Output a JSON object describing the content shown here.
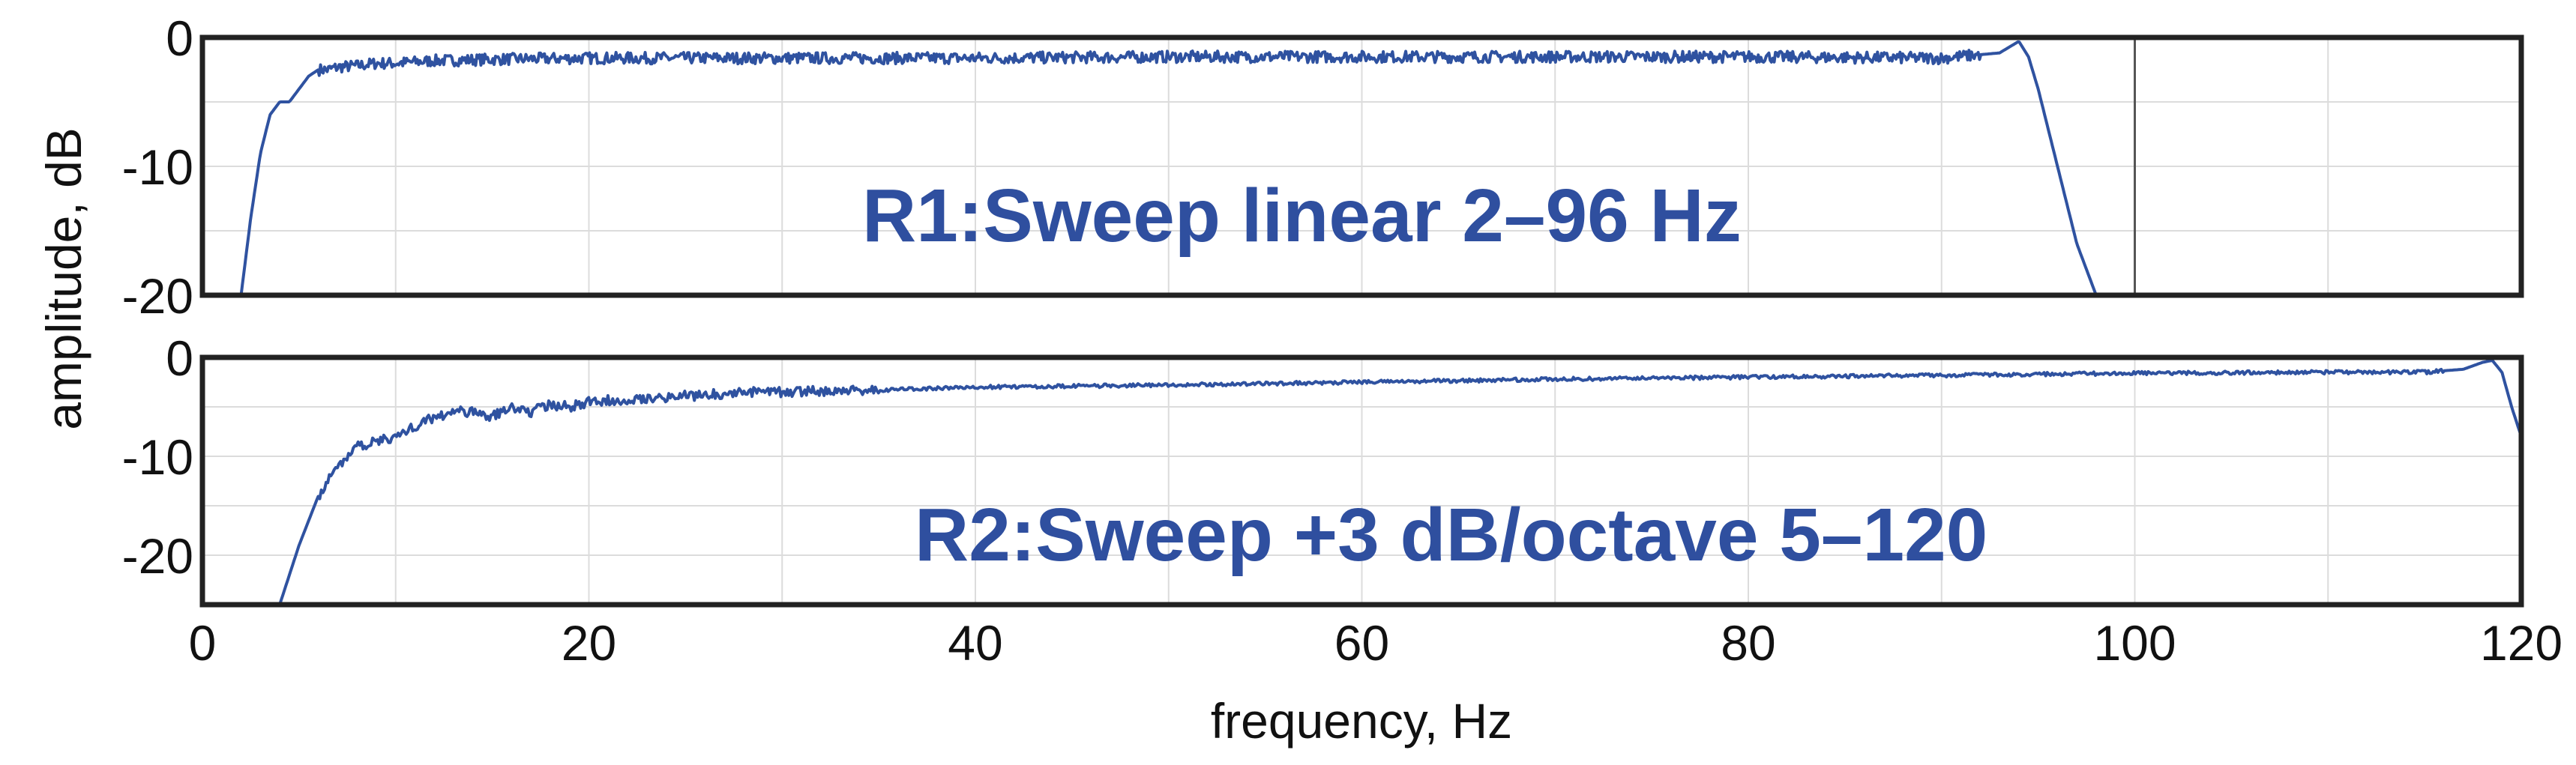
{
  "figure": {
    "ylabel": "amplitude, dB",
    "xlabel": "frequency, Hz",
    "line_color": "#2f52a0",
    "annotation_color": "#2f4f9f",
    "frame_color": "#222222",
    "grid_color": "#dcdcdc"
  },
  "chart_data": [
    {
      "type": "line",
      "annotation": "R1:Sweep linear 2–96 Hz",
      "xlim": [
        0,
        120
      ],
      "visible_xlim": [
        0,
        120
      ],
      "ylim": [
        -20,
        0
      ],
      "yticks": [
        0,
        -10,
        -20
      ],
      "ytick_labels": [
        "0",
        "-10",
        "-20"
      ],
      "xticks": [],
      "grid": true,
      "marker_line_x": 100,
      "series": [
        {
          "x": [
            2,
            2.5,
            3,
            3.5,
            4,
            4.5,
            5,
            5.5,
            6,
            6.5,
            7,
            8,
            9,
            10,
            12,
            15,
            20,
            30,
            40,
            50,
            55,
            60,
            70,
            80,
            90,
            93,
            94,
            94.5,
            95,
            95.5,
            96,
            96.5,
            97,
            97.5,
            98
          ],
          "y": [
            -20,
            -14,
            -9,
            -6,
            -5,
            -5,
            -4,
            -3,
            -2.5,
            -2.5,
            -2.3,
            -2.2,
            -2,
            -2,
            -1.8,
            -1.7,
            -1.6,
            -1.6,
            -1.6,
            -1.5,
            -1.5,
            -1.5,
            -1.5,
            -1.5,
            -1.6,
            -1.2,
            -0.3,
            -1.5,
            -4,
            -7,
            -10,
            -13,
            -16,
            -18,
            -20
          ],
          "noise": 0.45
        }
      ]
    },
    {
      "type": "line",
      "annotation": "R2:Sweep +3 dB/octave 5–120",
      "xlim": [
        0,
        120
      ],
      "ylim": [
        -25,
        0
      ],
      "yticks": [
        0,
        -10,
        -20
      ],
      "ytick_labels": [
        "0",
        "-10",
        "-20"
      ],
      "xticks": [
        0,
        20,
        40,
        60,
        80,
        100,
        120
      ],
      "xtick_labels": [
        "0",
        "20",
        "40",
        "60",
        "80",
        "100",
        "120"
      ],
      "grid": true,
      "series": [
        {
          "x": [
            4,
            5,
            6,
            7,
            8,
            9,
            10,
            11,
            12,
            13,
            14,
            15,
            16,
            17,
            18,
            19,
            20,
            22,
            24,
            26,
            28,
            30,
            35,
            40,
            50,
            60,
            70,
            80,
            90,
            100,
            110,
            115,
            117,
            118,
            118.5,
            119,
            119.5,
            120
          ],
          "y": [
            -25,
            -19,
            -14,
            -11,
            -9,
            -8.5,
            -8,
            -7,
            -6,
            -5.5,
            -5.5,
            -6,
            -5,
            -5.5,
            -4.8,
            -5,
            -4.5,
            -4.2,
            -4,
            -3.8,
            -3.5,
            -3.5,
            -3.3,
            -3,
            -2.8,
            -2.5,
            -2.2,
            -2,
            -1.8,
            -1.6,
            -1.5,
            -1.5,
            -1.2,
            -0.5,
            -0.3,
            -1.5,
            -5,
            -8
          ]
        }
      ]
    }
  ]
}
